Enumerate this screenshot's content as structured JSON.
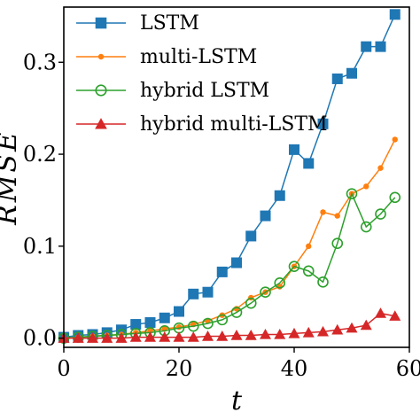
{
  "chart_data": {
    "type": "line",
    "xlabel": "t",
    "ylabel": "RMSE",
    "xlim": [
      0,
      60
    ],
    "ylim": [
      -0.01,
      0.36
    ],
    "xticks": [
      0,
      20,
      40,
      60
    ],
    "xtick_labels": [
      "0",
      "20",
      "40",
      "60"
    ],
    "yticks": [
      0.0,
      0.1,
      0.2,
      0.3
    ],
    "ytick_labels": [
      "0.0",
      "0.1",
      "0.2",
      "0.3"
    ],
    "grid": false,
    "legend_position": "top-left",
    "x": [
      0,
      2.5,
      5,
      7.5,
      10,
      12.5,
      15,
      17.5,
      20,
      22.5,
      25,
      27.5,
      30,
      32.5,
      35,
      37.5,
      40,
      42.5,
      45,
      47.5,
      50,
      52.5,
      55,
      57.5
    ],
    "series": [
      {
        "name": "LSTM",
        "color": "#1f77b4",
        "marker": "square",
        "values": [
          0.001,
          0.003,
          0.004,
          0.006,
          0.009,
          0.015,
          0.017,
          0.022,
          0.029,
          0.048,
          0.05,
          0.072,
          0.082,
          0.111,
          0.133,
          0.155,
          0.205,
          0.19,
          0.233,
          0.282,
          0.288,
          0.317,
          0.317,
          0.352
        ]
      },
      {
        "name": "multi-LSTM",
        "color": "#ff7f0e",
        "marker": "dot",
        "values": [
          0.0,
          0.001,
          0.002,
          0.003,
          0.004,
          0.006,
          0.008,
          0.01,
          0.012,
          0.015,
          0.019,
          0.025,
          0.032,
          0.044,
          0.05,
          0.056,
          0.078,
          0.1,
          0.137,
          0.133,
          0.157,
          0.165,
          0.185,
          0.216
        ]
      },
      {
        "name": "hybrid LSTM",
        "color": "#2ca02c",
        "marker": "circle-open",
        "values": [
          0.0,
          0.001,
          0.002,
          0.003,
          0.004,
          0.005,
          0.006,
          0.008,
          0.011,
          0.013,
          0.016,
          0.02,
          0.028,
          0.038,
          0.05,
          0.06,
          0.078,
          0.073,
          0.061,
          0.103,
          0.157,
          0.121,
          0.135,
          0.153
        ]
      },
      {
        "name": "hybrid multi-LSTM",
        "color": "#d62728",
        "marker": "triangle",
        "values": [
          0.0,
          0.0,
          0.0,
          0.0,
          0.0,
          0.001,
          0.001,
          0.001,
          0.001,
          0.001,
          0.002,
          0.002,
          0.003,
          0.003,
          0.004,
          0.004,
          0.005,
          0.006,
          0.007,
          0.009,
          0.011,
          0.014,
          0.027,
          0.024
        ]
      }
    ]
  }
}
